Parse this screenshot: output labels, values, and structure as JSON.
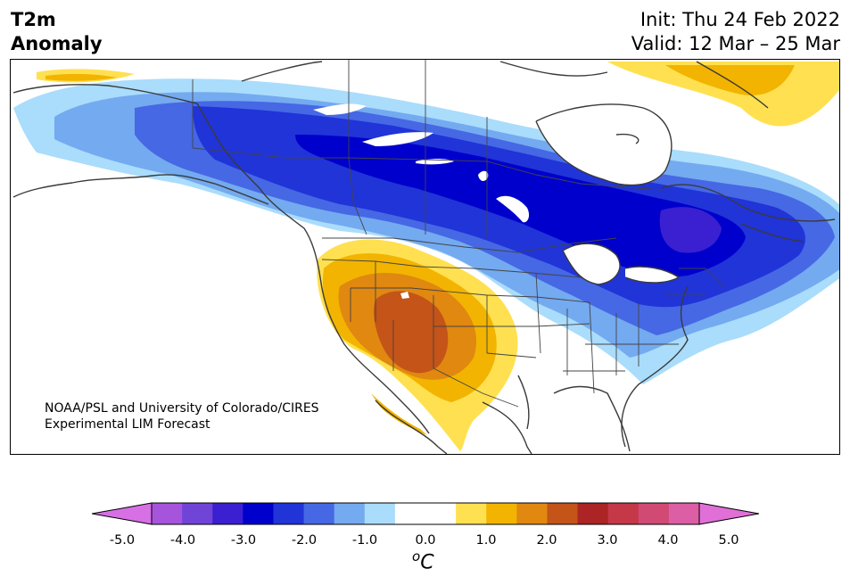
{
  "title": {
    "line1": "T2m",
    "line2": "Anomaly"
  },
  "dates": {
    "init": "Init: Thu 24 Feb 2022",
    "valid": "Valid: 12 Mar – 25 Mar"
  },
  "credit": {
    "line1": "NOAA/PSL and University of Colorado/CIRES",
    "line2": "Experimental LIM Forecast"
  },
  "colorbar": {
    "colors": [
      "#d670e4",
      "#a654dc",
      "#7144d8",
      "#3a20d0",
      "#0000cc",
      "#2034d8",
      "#4668e4",
      "#74aaf0",
      "#aadcfc",
      "#ffffff",
      "#ffffff",
      "#ffe050",
      "#f2b400",
      "#e08810",
      "#c45418",
      "#ac2424",
      "#c43848",
      "#d04a74",
      "#dc5ea4",
      "#e070d8"
    ],
    "tick_labels": [
      "-5.0",
      "-4.0",
      "-3.0",
      "-2.0",
      "-1.0",
      "0.0",
      "1.0",
      "2.0",
      "3.0",
      "4.0",
      "5.0"
    ],
    "unit_base": "C",
    "unit_sup": "o"
  },
  "region": "North America 2m temperature anomaly forecast"
}
